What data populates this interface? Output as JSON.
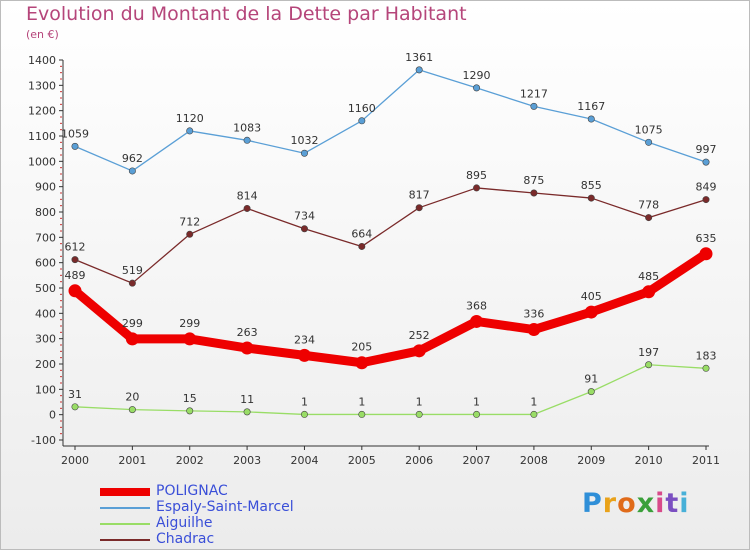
{
  "header": {
    "title": "Evolution du Montant de la Dette par Habitant",
    "subtitle": "(en €)"
  },
  "brand": {
    "letters": [
      "P",
      "r",
      "o",
      "x",
      "i",
      "t",
      "i"
    ],
    "letter_colors": [
      "#2f8fd8",
      "#e9a21a",
      "#e06b1a",
      "#3aa03a",
      "#d84a8a",
      "#7b4fc1",
      "#47b0d8"
    ]
  },
  "chart_data": {
    "type": "line",
    "title": "Evolution du Montant de la Dette par Habitant",
    "subtitle": "(en €)",
    "xlabel": "",
    "ylabel": "",
    "x": [
      "2000",
      "2001",
      "2002",
      "2003",
      "2004",
      "2005",
      "2006",
      "2007",
      "2008",
      "2009",
      "2010",
      "2011"
    ],
    "ylim": [
      -100,
      1400
    ],
    "yticks": [
      -100,
      0,
      100,
      200,
      300,
      400,
      500,
      600,
      700,
      800,
      900,
      1000,
      1100,
      1200,
      1300,
      1400
    ],
    "grid": false,
    "legend_position": "bottom-left",
    "series": [
      {
        "name": "POLIGNAC",
        "color": "#ee0000",
        "values": [
          489,
          299,
          299,
          263,
          234,
          205,
          252,
          368,
          336,
          405,
          485,
          635
        ]
      },
      {
        "name": "Espaly-Saint-Marcel",
        "color": "#5a9fd6",
        "values": [
          1059,
          962,
          1120,
          1083,
          1032,
          1160,
          1361,
          1290,
          1217,
          1167,
          1075,
          997
        ]
      },
      {
        "name": "Aiguilhe",
        "color": "#99dd66",
        "values": [
          31,
          20,
          15,
          11,
          1,
          1,
          1,
          1,
          1,
          91,
          197,
          183
        ]
      },
      {
        "name": "Chadrac",
        "color": "#7a2a2a",
        "values": [
          612,
          519,
          712,
          814,
          734,
          664,
          817,
          895,
          875,
          855,
          778,
          849
        ]
      }
    ]
  }
}
